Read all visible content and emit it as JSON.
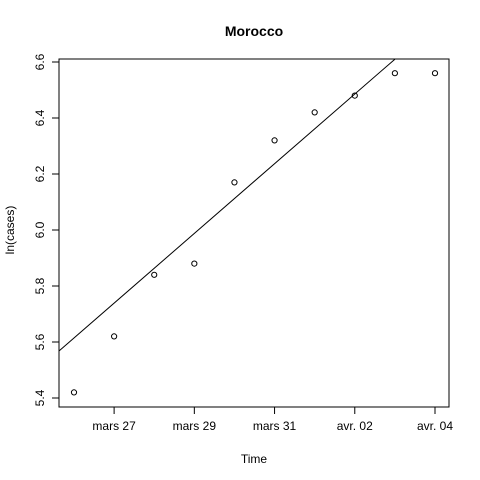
{
  "chart_data": {
    "type": "scatter",
    "title": "Morocco",
    "xlabel": "Time",
    "ylabel": "ln(cases)",
    "x_ticks": [
      "mars 27",
      "mars 29",
      "mars 31",
      "avr. 02",
      "avr. 04"
    ],
    "x_tick_dates": [
      "2020-03-27",
      "2020-03-29",
      "2020-03-31",
      "2020-04-02",
      "2020-04-04"
    ],
    "y_ticks": [
      5.4,
      5.6,
      5.8,
      6.0,
      6.2,
      6.4,
      6.6
    ],
    "xlim": [
      "2020-03-25",
      "2020-04-04"
    ],
    "ylim": [
      5.4,
      6.6
    ],
    "grid": false,
    "series": [
      {
        "x": [
          "2020-03-26",
          "2020-03-27",
          "2020-03-28",
          "2020-03-29",
          "2020-03-30",
          "2020-03-31",
          "2020-04-01",
          "2020-04-02",
          "2020-04-03",
          "2020-04-04"
        ],
        "y": [
          5.42,
          5.62,
          5.84,
          5.88,
          6.17,
          6.32,
          6.42,
          6.48,
          6.56,
          6.56
        ]
      }
    ],
    "fit_line": {
      "x": [
        "2020-03-25",
        "2020-04-03"
      ],
      "y": [
        5.49,
        6.61
      ]
    }
  }
}
